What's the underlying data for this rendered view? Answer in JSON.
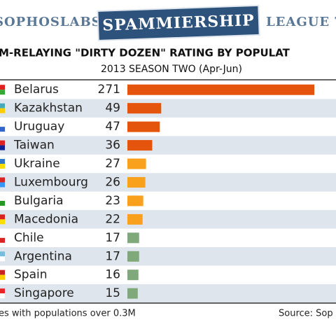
{
  "chart_data": {
    "type": "bar",
    "header_left": "SOPHOSLABS",
    "header_brand": "SPAMMIERSHIP",
    "header_right": "LEAGUE T",
    "title": "M-RELAYING \"DIRTY DOZEN\" RATING BY POPULAT",
    "subtitle": "2013 SEASON TWO (Apr-Jun)",
    "categories": [
      "Belarus",
      "Kazakhstan",
      "Uruguay",
      "Taiwan",
      "Ukraine",
      "Luxembourg",
      "Bulgaria",
      "Macedonia",
      "Chile",
      "Argentina",
      "Spain",
      "Singapore"
    ],
    "values": [
      271,
      49,
      47,
      36,
      27,
      26,
      23,
      22,
      17,
      17,
      16,
      15
    ],
    "colors": [
      "#e4540c",
      "#e4540c",
      "#e4540c",
      "#e4540c",
      "#f9a01d",
      "#f9a01d",
      "#f9a01d",
      "#f9a01d",
      "#7fa97a",
      "#7fa97a",
      "#7fa97a",
      "#7fa97a"
    ],
    "xlim": [
      0,
      275
    ],
    "footnote": "es with populations over 0.3M",
    "source": "Source: Sop"
  }
}
